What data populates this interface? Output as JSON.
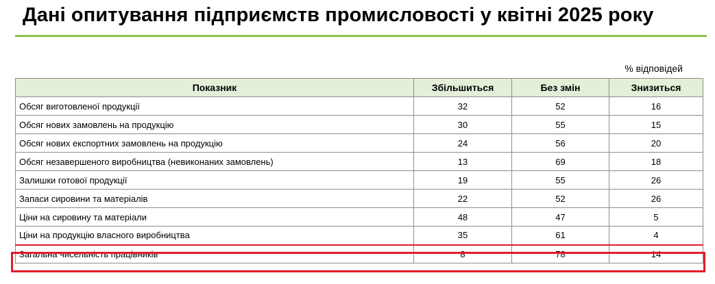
{
  "title": "Дані опитування підприємств промисловості у квітні 2025 року",
  "units_note": "% відповідей",
  "table": {
    "headers": [
      "Показник",
      "Збільшиться",
      "Без змін",
      "Знизиться"
    ],
    "rows": [
      {
        "label": "Обсяг виготовленої продукції",
        "increase": "32",
        "no_change": "52",
        "decrease": "16"
      },
      {
        "label": "Обсяг нових замовлень на продукцію",
        "increase": "30",
        "no_change": "55",
        "decrease": "15"
      },
      {
        "label": "Обсяг нових експортних замовлень на продукцію",
        "increase": "24",
        "no_change": "56",
        "decrease": "20"
      },
      {
        "label": "Обсяг незавершеного виробництва (невиконаних замовлень)",
        "increase": "13",
        "no_change": "69",
        "decrease": "18"
      },
      {
        "label": "Залишки готової продукції",
        "increase": "19",
        "no_change": "55",
        "decrease": "26"
      },
      {
        "label": "Запаси сировини та матеріалів",
        "increase": "22",
        "no_change": "52",
        "decrease": "26"
      },
      {
        "label": "Ціни на сировину та матеріали",
        "increase": "48",
        "no_change": "47",
        "decrease": "5"
      },
      {
        "label": "Ціни на продукцію власного виробництва",
        "increase": "35",
        "no_change": "61",
        "decrease": "4"
      },
      {
        "label": "Загальна чисельність працівників",
        "increase": "8",
        "no_change": "78",
        "decrease": "14"
      }
    ]
  },
  "colors": {
    "accent_rule": "#8bc34a",
    "header_fill": "#e3efd8",
    "highlight_border": "#e11b2a"
  }
}
